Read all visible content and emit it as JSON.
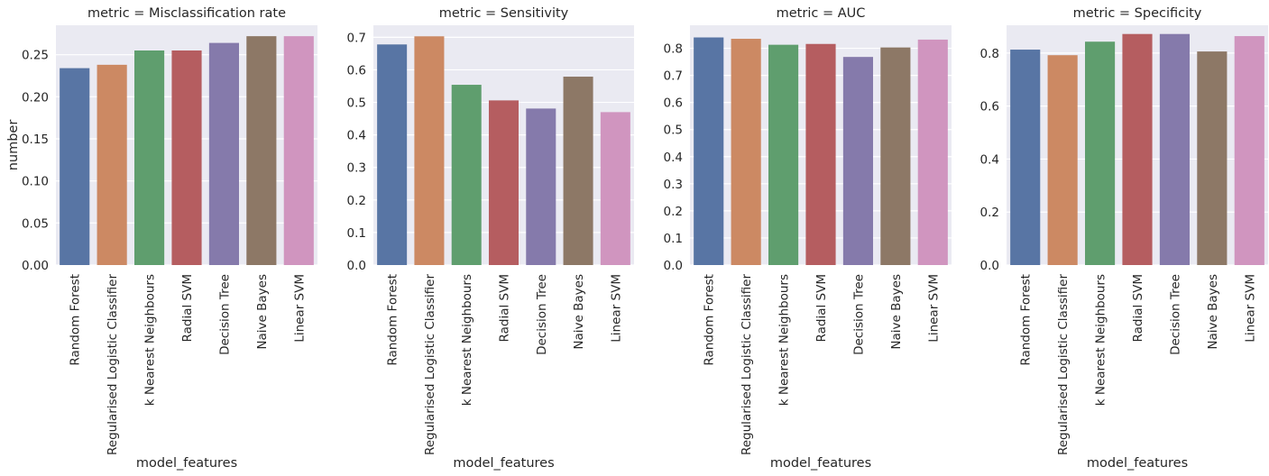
{
  "colors": [
    "#5875a4",
    "#cc8963",
    "#5f9e6e",
    "#b55d60",
    "#857aab",
    "#8d7866",
    "#d095bf"
  ],
  "chart_data": [
    {
      "type": "bar",
      "title": "metric = Misclassification rate",
      "xlabel": "model_features",
      "ylabel": "number",
      "categories": [
        "Random Forest",
        "Regularised Logistic Classifier",
        "k Nearest Neighbours",
        "Radial SVM",
        "Decision Tree",
        "Naive Bayes",
        "Linear SVM"
      ],
      "values": [
        0.234,
        0.238,
        0.255,
        0.255,
        0.264,
        0.272,
        0.272
      ],
      "ylim": [
        0,
        0.285
      ],
      "yticks": [
        "0.00",
        "0.05",
        "0.10",
        "0.15",
        "0.20",
        "0.25"
      ],
      "grid": true
    },
    {
      "type": "bar",
      "title": "metric = Sensitivity",
      "xlabel": "model_features",
      "ylabel": "",
      "categories": [
        "Random Forest",
        "Regularised Logistic Classifier",
        "k Nearest Neighbours",
        "Radial SVM",
        "Decision Tree",
        "Naive Bayes",
        "Linear SVM"
      ],
      "values": [
        0.678,
        0.703,
        0.554,
        0.506,
        0.481,
        0.579,
        0.47
      ],
      "ylim": [
        0,
        0.737
      ],
      "yticks": [
        "0.0",
        "0.1",
        "0.2",
        "0.3",
        "0.4",
        "0.5",
        "0.6",
        "0.7"
      ],
      "grid": true
    },
    {
      "type": "bar",
      "title": "metric = AUC",
      "xlabel": "model_features",
      "ylabel": "",
      "categories": [
        "Random Forest",
        "Regularised Logistic Classifier",
        "k Nearest Neighbours",
        "Radial SVM",
        "Decision Tree",
        "Naive Bayes",
        "Linear SVM"
      ],
      "values": [
        0.84,
        0.835,
        0.813,
        0.816,
        0.768,
        0.803,
        0.832
      ],
      "ylim": [
        0,
        0.885
      ],
      "yticks": [
        "0.0",
        "0.1",
        "0.2",
        "0.3",
        "0.4",
        "0.5",
        "0.6",
        "0.7",
        "0.8"
      ],
      "grid": true
    },
    {
      "type": "bar",
      "title": "metric = Specificity",
      "xlabel": "model_features",
      "ylabel": "",
      "categories": [
        "Random Forest",
        "Regularised Logistic Classifier",
        "k Nearest Neighbours",
        "Radial SVM",
        "Decision Tree",
        "Naive Bayes",
        "Linear SVM"
      ],
      "values": [
        0.813,
        0.792,
        0.843,
        0.872,
        0.872,
        0.806,
        0.864
      ],
      "ylim": [
        0,
        0.905
      ],
      "yticks": [
        "0.0",
        "0.2",
        "0.4",
        "0.6",
        "0.8"
      ],
      "grid": true
    }
  ]
}
